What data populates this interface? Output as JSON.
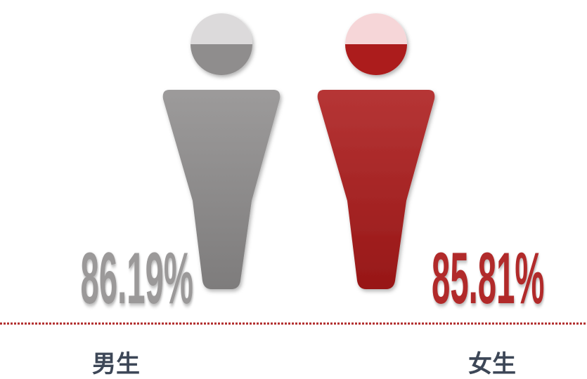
{
  "chart_data": {
    "type": "pictograph",
    "categories": [
      "男生",
      "女生"
    ],
    "values": [
      86.19,
      85.81
    ],
    "value_labels": [
      "86.19%",
      "85.81%"
    ],
    "colors": [
      "#8f8d8d",
      "#ac1a1a"
    ],
    "highlight_colors": [
      "#dcdadb",
      "#f6d6d8"
    ],
    "label_colors": [
      "#9b9999",
      "#b12a2a"
    ]
  }
}
